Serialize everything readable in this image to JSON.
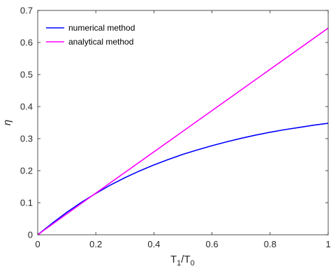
{
  "chart_data": {
    "type": "line",
    "xlabel": {
      "base": "T",
      "sub1": "1",
      "slash": "/T",
      "sub2": "0"
    },
    "ylabel": "η",
    "xlim": [
      0,
      1
    ],
    "ylim": [
      0,
      0.7
    ],
    "xticks": [
      0,
      0.2,
      0.4,
      0.6,
      0.8,
      1
    ],
    "xtick_labels": [
      "0",
      "0.2",
      "0.4",
      "0.6",
      "0.8",
      "1"
    ],
    "yticks": [
      0,
      0.1,
      0.2,
      0.3,
      0.4,
      0.5,
      0.6,
      0.7
    ],
    "ytick_labels": [
      "0",
      "0.1",
      "0.2",
      "0.3",
      "0.4",
      "0.5",
      "0.6",
      "0.7"
    ],
    "grid": false,
    "legend_position": "top-left",
    "series": [
      {
        "name": "numerical method",
        "color": "#0000ff",
        "x": [
          0,
          0.05,
          0.1,
          0.15,
          0.2,
          0.25,
          0.3,
          0.35,
          0.4,
          0.45,
          0.5,
          0.55,
          0.6,
          0.65,
          0.7,
          0.75,
          0.8,
          0.85,
          0.9,
          0.95,
          1
        ],
        "y": [
          0,
          0.036,
          0.07,
          0.101,
          0.129,
          0.155,
          0.178,
          0.199,
          0.218,
          0.235,
          0.251,
          0.265,
          0.278,
          0.29,
          0.301,
          0.311,
          0.32,
          0.328,
          0.335,
          0.342,
          0.348
        ]
      },
      {
        "name": "analytical method",
        "color": "#ff00ff",
        "x": [
          0,
          0.2,
          1
        ],
        "y": [
          0,
          0.13,
          0.645
        ]
      }
    ]
  }
}
